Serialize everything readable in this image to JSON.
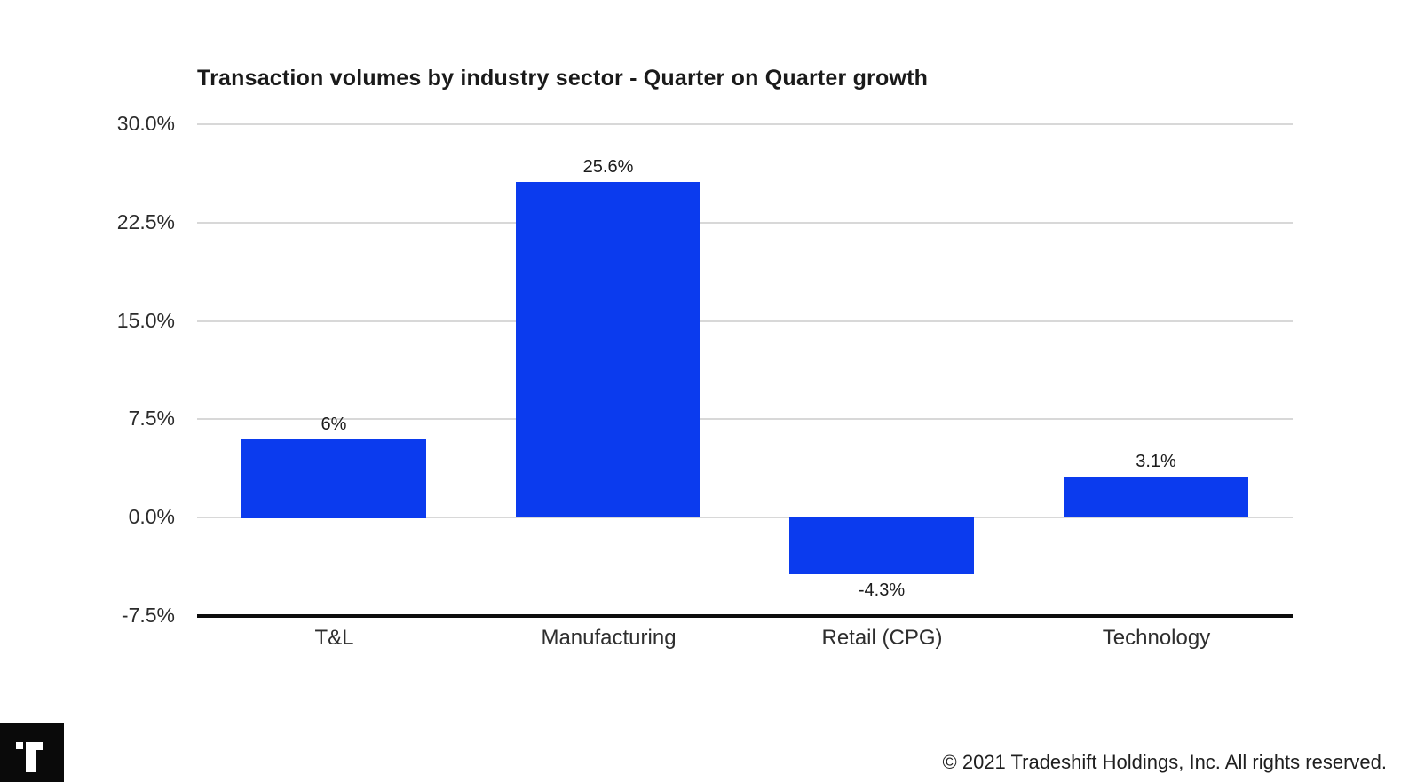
{
  "chart_data": {
    "type": "bar",
    "title": "Transaction volumes by industry sector - Quarter on Quarter growth",
    "categories": [
      "T&L",
      "Manufacturing",
      "Retail (CPG)",
      "Technology"
    ],
    "values": [
      6,
      25.6,
      -4.3,
      3.1
    ],
    "value_labels": [
      "6%",
      "25.6%",
      "-4.3%",
      "3.1%"
    ],
    "y_ticks": [
      "30.0%",
      "22.5%",
      "15.0%",
      "7.5%",
      "0.0%",
      "-7.5%"
    ],
    "y_tick_values": [
      30,
      22.5,
      15,
      7.5,
      0,
      -7.5
    ],
    "ylim": [
      -7.5,
      30
    ],
    "grid": "horizontal",
    "legend": "none",
    "xlabel": "",
    "ylabel": "",
    "bar_color": "#0b3bee",
    "gridline_color": "#d8d8d8",
    "axis_color": "#0d0d0d"
  },
  "footer": {
    "copyright": "© 2021 Tradeshift Holdings, Inc. All rights reserved.",
    "logo_icon": "tradeshift-logo-icon"
  }
}
